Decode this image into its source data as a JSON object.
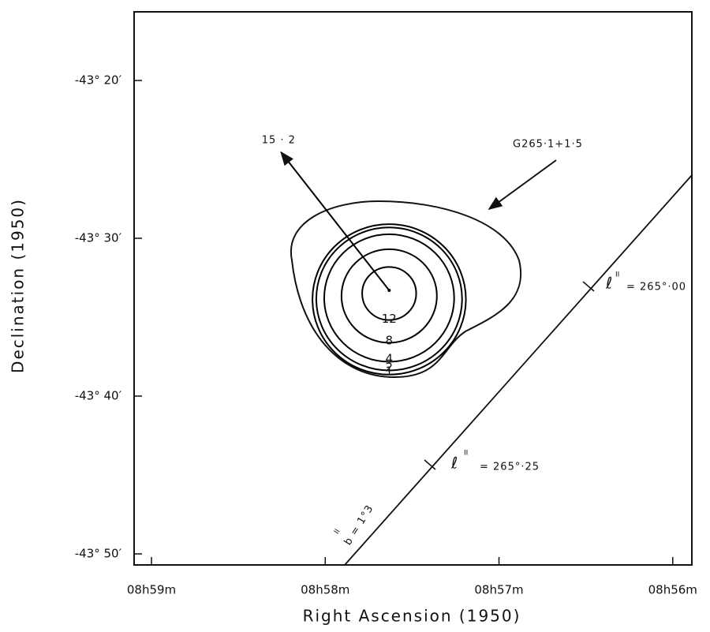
{
  "chart_data": {
    "type": "contour",
    "x_label": "Right Ascension (1950)",
    "y_label": "Declination (1950)",
    "xlim": [
      59.1,
      55.89
    ],
    "xticks": [
      {
        "value": 59,
        "label": "08h59m"
      },
      {
        "value": 58,
        "label": "08h58m"
      },
      {
        "value": 57,
        "label": "08h57m"
      },
      {
        "value": 56,
        "label": "08h56m"
      }
    ],
    "ylim": [
      50.7,
      15.65
    ],
    "yticks": [
      {
        "value": 20,
        "label": "-43° 20′"
      },
      {
        "value": 30,
        "label": "-43° 30′"
      },
      {
        "value": 40,
        "label": "-43° 40′"
      },
      {
        "value": 50,
        "label": "-43° 50′"
      }
    ],
    "peak": {
      "x": 57.632,
      "y": 33.3,
      "value": 15.2,
      "label": "15 · 2"
    },
    "levels": [
      1,
      2,
      4,
      8,
      12
    ],
    "source_name": "G265·1+1·5",
    "galactic": {
      "l_symbol": "ℓ",
      "l_sup": "II",
      "l1_text": "= 265°·00",
      "l2_text": "= 265°·25",
      "b_text": "b  = 1°3",
      "b_sup": "II"
    },
    "color": "#000000"
  }
}
